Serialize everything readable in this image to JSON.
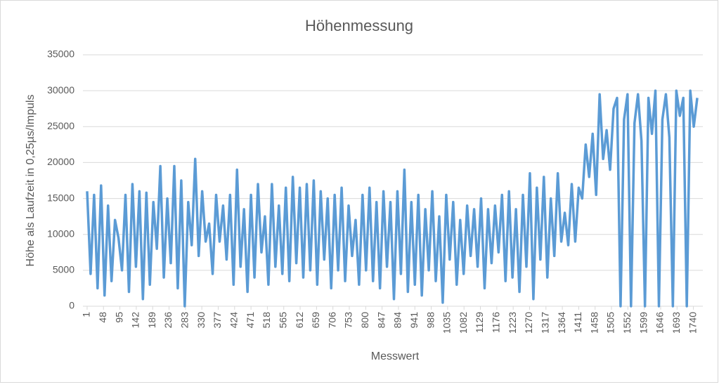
{
  "chart_data": {
    "type": "line",
    "title": "Höhenmessung",
    "y_label": "Höhe als Laufzeit in 0,25µs/Impuls",
    "x_label": "Messwert",
    "color": "#5b9bd5",
    "grid": true,
    "xlim": [
      -11,
      1767
    ],
    "xticks": [
      1,
      48,
      95,
      142,
      189,
      236,
      283,
      330,
      377,
      424,
      471,
      518,
      565,
      612,
      659,
      706,
      753,
      800,
      847,
      894,
      941,
      988,
      1035,
      1082,
      1129,
      1176,
      1223,
      1270,
      1317,
      1364,
      1411,
      1458,
      1505,
      1552,
      1599,
      1646,
      1693,
      1740
    ],
    "ylim": [
      0,
      35000
    ],
    "yticks": [
      0,
      5000,
      10000,
      15000,
      20000,
      25000,
      30000,
      35000
    ],
    "x": [
      1,
      11,
      21,
      31,
      41,
      51,
      61,
      71,
      81,
      91,
      101,
      111,
      121,
      131,
      141,
      151,
      161,
      171,
      181,
      191,
      201,
      211,
      221,
      231,
      241,
      251,
      261,
      271,
      281,
      291,
      301,
      311,
      321,
      331,
      341,
      351,
      361,
      371,
      381,
      391,
      401,
      411,
      421,
      431,
      441,
      451,
      461,
      471,
      481,
      491,
      501,
      511,
      521,
      531,
      541,
      551,
      561,
      571,
      581,
      591,
      601,
      611,
      621,
      631,
      641,
      651,
      661,
      671,
      681,
      691,
      701,
      711,
      721,
      731,
      741,
      751,
      761,
      771,
      781,
      791,
      801,
      811,
      821,
      831,
      841,
      851,
      861,
      871,
      881,
      891,
      901,
      911,
      921,
      931,
      941,
      951,
      961,
      971,
      981,
      991,
      1001,
      1011,
      1021,
      1031,
      1041,
      1051,
      1061,
      1071,
      1081,
      1091,
      1101,
      1111,
      1121,
      1131,
      1141,
      1151,
      1161,
      1171,
      1181,
      1191,
      1201,
      1211,
      1221,
      1231,
      1241,
      1251,
      1261,
      1271,
      1281,
      1291,
      1301,
      1311,
      1321,
      1331,
      1341,
      1351,
      1361,
      1371,
      1381,
      1391,
      1401,
      1411,
      1421,
      1431,
      1441,
      1451,
      1461,
      1471,
      1481,
      1491,
      1501,
      1511,
      1521,
      1531,
      1541,
      1551,
      1561,
      1571,
      1581,
      1591,
      1601,
      1611,
      1621,
      1631,
      1641,
      1651,
      1661,
      1671,
      1681,
      1691,
      1701,
      1711,
      1721,
      1731,
      1741,
      1751
    ],
    "values": [
      16000,
      4500,
      15500,
      2500,
      16800,
      1500,
      14000,
      3500,
      12000,
      9500,
      5000,
      15500,
      2000,
      17000,
      5500,
      16000,
      1000,
      15800,
      3000,
      14500,
      8000,
      19500,
      4000,
      15000,
      6000,
      19500,
      2500,
      17500,
      0,
      14500,
      8500,
      20500,
      7000,
      16000,
      9000,
      11500,
      4500,
      15500,
      9000,
      14000,
      6500,
      15500,
      3000,
      19000,
      5500,
      13500,
      2000,
      15500,
      4000,
      17000,
      7500,
      12500,
      3000,
      17000,
      5500,
      14000,
      4500,
      16500,
      3500,
      18000,
      6000,
      16500,
      4000,
      17000,
      5000,
      17500,
      3000,
      16000,
      6500,
      15000,
      2500,
      15500,
      5000,
      16500,
      3500,
      14000,
      7000,
      12000,
      3000,
      15500,
      5000,
      16500,
      3500,
      14500,
      2500,
      16000,
      5500,
      14500,
      1000,
      16000,
      4500,
      19000,
      2000,
      14500,
      3000,
      15500,
      1500,
      13500,
      5000,
      16000,
      3500,
      12500,
      500,
      15500,
      6500,
      14500,
      3000,
      12000,
      4500,
      14000,
      7000,
      13500,
      5500,
      15000,
      2500,
      13500,
      6000,
      14000,
      7500,
      15500,
      3500,
      16000,
      4000,
      13500,
      2000,
      15500,
      5500,
      18500,
      1000,
      16500,
      6500,
      18000,
      4000,
      15000,
      7000,
      18500,
      9000,
      13000,
      8500,
      17000,
      9000,
      16500,
      15000,
      22500,
      18000,
      24000,
      15500,
      29500,
      20500,
      24500,
      19000,
      27500,
      29000,
      0,
      26000,
      29500,
      0,
      25500,
      29500,
      23000,
      0,
      29000,
      24000,
      30000,
      0,
      26000,
      29500,
      23500,
      0,
      30000,
      26500,
      29000,
      0,
      30000,
      25000,
      29000
    ]
  }
}
